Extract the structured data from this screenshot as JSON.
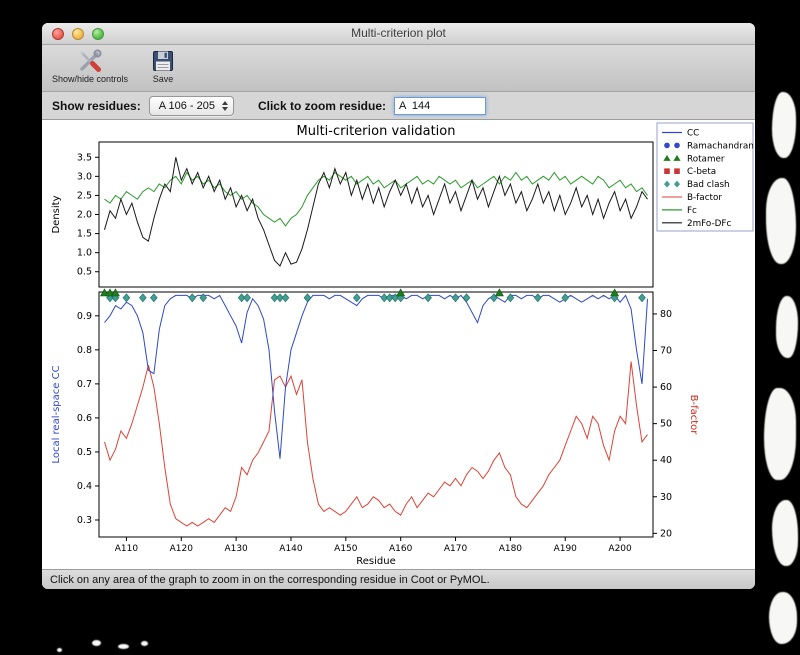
{
  "window": {
    "title": "Multi-criterion plot",
    "traffic_lights": [
      "close",
      "minimize",
      "zoom"
    ],
    "toolbar": {
      "show_hide_label": "Show/hide controls",
      "show_hide_icon": "crossed-tools-icon",
      "save_label": "Save",
      "save_icon": "floppy-disk-icon"
    },
    "controls": {
      "show_residues_label": "Show residues:",
      "residue_range_value": "A 106 - 205",
      "zoom_label": "Click to zoom residue:",
      "zoom_value": "A  144"
    },
    "status_bar": "Click on any area of the graph to zoom in on the corresponding residue in Coot or PyMOL."
  },
  "chart_data": {
    "type": "line",
    "title": "Multi-criterion validation",
    "xlabel": "Residue",
    "x_start": 106,
    "x_end": 205,
    "x_ticks": [
      "A110",
      "A120",
      "A130",
      "A140",
      "A150",
      "A160",
      "A170",
      "A180",
      "A190",
      "A200"
    ],
    "top": {
      "ylabel": "Density",
      "ylim": [
        0.1,
        3.9
      ],
      "yticks": [
        0.5,
        1.0,
        1.5,
        2.0,
        2.5,
        3.0,
        3.5
      ],
      "series": [
        {
          "name": "Fc",
          "color": "#2e9b2e",
          "values": [
            2.4,
            2.3,
            2.5,
            2.4,
            2.6,
            2.5,
            2.4,
            2.6,
            2.7,
            2.6,
            2.8,
            2.7,
            2.9,
            3.0,
            2.8,
            3.1,
            2.9,
            3.0,
            2.8,
            2.9,
            2.7,
            2.8,
            2.6,
            2.5,
            2.6,
            2.4,
            2.5,
            2.3,
            2.2,
            2.0,
            1.9,
            1.8,
            1.9,
            1.7,
            1.9,
            2.0,
            2.2,
            2.5,
            2.7,
            2.9,
            3.0,
            2.9,
            3.1,
            3.0,
            2.9,
            3.0,
            2.8,
            2.9,
            3.0,
            2.8,
            2.9,
            2.7,
            2.8,
            2.9,
            2.7,
            2.8,
            2.9,
            3.0,
            2.8,
            2.9,
            2.8,
            3.0,
            2.9,
            2.8,
            2.9,
            2.7,
            2.8,
            2.9,
            2.7,
            2.8,
            2.9,
            3.0,
            2.8,
            3.0,
            2.9,
            3.1,
            2.9,
            3.0,
            2.8,
            2.9,
            3.0,
            2.9,
            3.1,
            2.9,
            3.0,
            2.8,
            2.9,
            3.0,
            2.9,
            2.8,
            3.0,
            2.9,
            2.7,
            2.8,
            2.9,
            2.7,
            2.8,
            2.6,
            2.7,
            2.5
          ]
        },
        {
          "name": "2mFo-DFc",
          "color": "#1a1a1a",
          "values": [
            1.6,
            2.1,
            1.9,
            2.4,
            2.0,
            2.3,
            1.8,
            1.4,
            1.3,
            1.9,
            2.4,
            2.8,
            2.6,
            3.5,
            2.9,
            3.2,
            2.8,
            3.1,
            2.7,
            3.0,
            2.6,
            2.9,
            2.4,
            2.7,
            2.2,
            2.5,
            2.1,
            2.4,
            1.9,
            1.6,
            1.2,
            0.8,
            0.65,
            1.0,
            0.7,
            0.75,
            1.1,
            1.6,
            2.2,
            2.8,
            3.1,
            2.7,
            3.2,
            2.8,
            3.1,
            2.5,
            2.9,
            2.4,
            2.8,
            2.3,
            2.7,
            2.2,
            2.6,
            2.9,
            2.5,
            2.8,
            2.3,
            2.7,
            2.2,
            2.5,
            2.0,
            2.4,
            2.8,
            2.3,
            2.6,
            2.1,
            2.5,
            2.9,
            2.4,
            2.7,
            2.2,
            2.6,
            3.0,
            2.5,
            2.8,
            2.3,
            2.6,
            2.1,
            2.4,
            2.8,
            2.3,
            2.6,
            2.1,
            2.5,
            2.0,
            2.3,
            2.7,
            2.2,
            2.5,
            2.0,
            2.4,
            1.9,
            2.3,
            2.6,
            2.1,
            2.4,
            1.9,
            2.2,
            2.6,
            2.4
          ]
        }
      ]
    },
    "bottom": {
      "ylabel_left": "Local real-space CC",
      "ylabel_left_color": "#3049c8",
      "ylim_left": [
        0.25,
        0.97
      ],
      "yticks_left": [
        0.3,
        0.4,
        0.5,
        0.6,
        0.7,
        0.8,
        0.9
      ],
      "ylabel_right": "B-factor",
      "ylabel_right_color": "#cc2a1e",
      "ylim_right": [
        19,
        86
      ],
      "yticks_right": [
        20,
        30,
        40,
        50,
        60,
        70,
        80
      ],
      "cc": {
        "name": "CC",
        "color": "#3049c8",
        "values": [
          0.88,
          0.9,
          0.93,
          0.92,
          0.94,
          0.93,
          0.9,
          0.85,
          0.74,
          0.73,
          0.86,
          0.93,
          0.95,
          0.96,
          0.96,
          0.96,
          0.95,
          0.96,
          0.96,
          0.96,
          0.95,
          0.96,
          0.93,
          0.9,
          0.87,
          0.82,
          0.91,
          0.95,
          0.93,
          0.89,
          0.8,
          0.62,
          0.48,
          0.69,
          0.8,
          0.85,
          0.9,
          0.94,
          0.96,
          0.96,
          0.96,
          0.95,
          0.96,
          0.96,
          0.95,
          0.94,
          0.93,
          0.95,
          0.96,
          0.96,
          0.96,
          0.95,
          0.96,
          0.96,
          0.96,
          0.95,
          0.96,
          0.96,
          0.95,
          0.96,
          0.96,
          0.96,
          0.95,
          0.96,
          0.95,
          0.96,
          0.94,
          0.91,
          0.88,
          0.93,
          0.95,
          0.96,
          0.95,
          0.94,
          0.96,
          0.96,
          0.95,
          0.96,
          0.96,
          0.95,
          0.96,
          0.96,
          0.95,
          0.94,
          0.95,
          0.96,
          0.95,
          0.94,
          0.95,
          0.96,
          0.95,
          0.96,
          0.95,
          0.96,
          0.94,
          0.96,
          0.92,
          0.8,
          0.7,
          0.95
        ]
      },
      "bfactor": {
        "name": "B-factor",
        "color": "#dc4437",
        "values": [
          45,
          40,
          43,
          48,
          46,
          50,
          55,
          60,
          66,
          60,
          50,
          38,
          28,
          24,
          23,
          22,
          23,
          22,
          23,
          24,
          23,
          25,
          27,
          26,
          30,
          38,
          36,
          40,
          42,
          45,
          48,
          62,
          63,
          60,
          63,
          58,
          62,
          45,
          35,
          28,
          26,
          27,
          26,
          25,
          26,
          28,
          30,
          27,
          28,
          30,
          29,
          27,
          28,
          26,
          25,
          28,
          30,
          27,
          29,
          31,
          30,
          32,
          34,
          33,
          35,
          33,
          36,
          38,
          37,
          35,
          37,
          40,
          42,
          38,
          36,
          30,
          28,
          27,
          29,
          31,
          33,
          36,
          38,
          40,
          44,
          48,
          52,
          50,
          46,
          52,
          50,
          44,
          40,
          48,
          52,
          50,
          67,
          55,
          45,
          47
        ]
      },
      "markers": {
        "bad_clash": {
          "color": "#3f9f92",
          "y": 0.953,
          "residues": [
            107,
            108,
            110,
            113,
            115,
            122,
            124,
            131,
            132,
            137,
            138,
            139,
            143,
            152,
            157,
            158,
            159,
            160,
            165,
            170,
            172,
            177,
            180,
            185,
            190,
            199,
            204
          ]
        },
        "rotamer": {
          "color": "#1e7d1e",
          "residues": [
            106,
            107,
            108,
            160,
            178,
            199
          ]
        },
        "ramachandran": {
          "color": "#3049c8",
          "residues": []
        },
        "c_beta": {
          "color": "#cc3333",
          "residues": []
        }
      }
    },
    "legend": [
      {
        "label": "CC",
        "type": "line",
        "color": "#3049c8"
      },
      {
        "label": "Ramachandran",
        "type": "circle",
        "color": "#3049c8"
      },
      {
        "label": "Rotamer",
        "type": "triangle",
        "color": "#1e7d1e"
      },
      {
        "label": "C-beta",
        "type": "square",
        "color": "#cc3333"
      },
      {
        "label": "Bad clash",
        "type": "diamond",
        "color": "#3f9f92"
      },
      {
        "label": "B-factor",
        "type": "line",
        "color": "#e0695c"
      },
      {
        "label": "Fc",
        "type": "line",
        "color": "#2e9b2e"
      },
      {
        "label": "2mFo-DFc",
        "type": "line",
        "color": "#1a1a1a"
      }
    ]
  }
}
